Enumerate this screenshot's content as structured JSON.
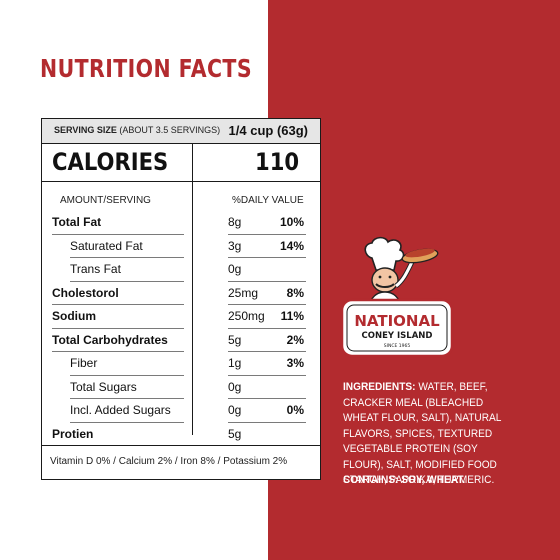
{
  "title": "NUTRITION FACTS",
  "serving": {
    "label": "SERVING SIZE",
    "note": "(ABOUT 3.5 SERVINGS)",
    "value": "1/4 cup (63g)"
  },
  "calories": {
    "label": "CALORIES",
    "value": "110"
  },
  "headers": {
    "amount": "AMOUNT/SERVING",
    "daily_value": "%DAILY VALUE"
  },
  "rows": [
    {
      "name": "Total Fat",
      "amount": "8g",
      "dv": "10%"
    },
    {
      "name": "Saturated Fat",
      "amount": "3g",
      "dv": "14%"
    },
    {
      "name": "Trans Fat",
      "amount": "0g",
      "dv": ""
    },
    {
      "name": "Cholestorol",
      "amount": "25mg",
      "dv": "8%"
    },
    {
      "name": "Sodium",
      "amount": "250mg",
      "dv": "11%"
    },
    {
      "name": "Total Carbohydrates",
      "amount": "5g",
      "dv": "2%"
    },
    {
      "name": "Fiber",
      "amount": "1g",
      "dv": "3%"
    },
    {
      "name": "Total Sugars",
      "amount": "0g",
      "dv": ""
    },
    {
      "name": "Incl. Added Sugars",
      "amount": "0g",
      "dv": "0%"
    },
    {
      "name": "Protien",
      "amount": "5g",
      "dv": ""
    }
  ],
  "vitamins": "Vitamin D 0%  /  Calcium 2%  /  Iron 8%  /  Potassium 2%",
  "logo": {
    "line1": "NATIONAL",
    "line2": "CONEY ISLAND",
    "line3": "SINCE 1965"
  },
  "ingredients": {
    "label": "INGREDIENTS:",
    "text": " WATER, BEEF, CRACKER MEAL (BLEACHED WHEAT FLOUR, SALT), NATURAL FLAVORS, SPICES, TEXTURED VEGETABLE PROTEIN (SOY FLOUR), SALT, MODIFIED FOOD STARCH, PAPRIKA, TURMERIC."
  },
  "contains": {
    "label": "CONTAINS:",
    "text": " SOY, WHEAT."
  },
  "colors": {
    "brand_red": "#b32b2f",
    "panel_gray": "#e6e6e6"
  }
}
